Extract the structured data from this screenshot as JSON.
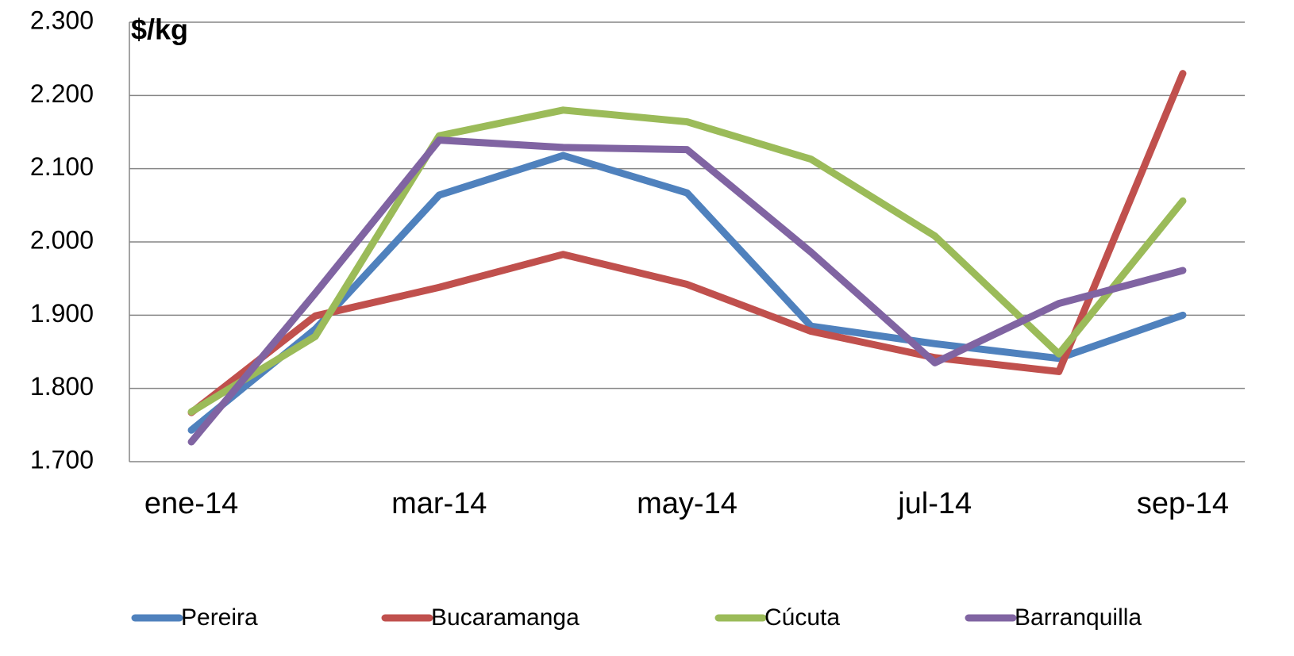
{
  "chart_data": {
    "type": "line",
    "title": "$/kg",
    "categories": [
      "ene-14",
      null,
      "mar-14",
      null,
      "may-14",
      null,
      "jul-14",
      null,
      "sep-14"
    ],
    "series": [
      {
        "name": "Pereira",
        "color": "#4f81bd",
        "values": [
          1743,
          1881,
          2064,
          2118,
          2067,
          1885,
          1861,
          1841,
          1900
        ]
      },
      {
        "name": "Bucaramanga",
        "color": "#c0504d",
        "values": [
          1767,
          1899,
          1938,
          1983,
          1942,
          1878,
          1842,
          1823,
          2230
        ]
      },
      {
        "name": "Cúcuta",
        "color": "#9bbb59",
        "values": [
          1768,
          1871,
          2145,
          2180,
          2164,
          2113,
          2008,
          1847,
          2056
        ]
      },
      {
        "name": "Barranquilla",
        "color": "#8064a2",
        "values": [
          1727,
          1930,
          2139,
          2129,
          2126,
          1986,
          1835,
          1916,
          1961
        ]
      }
    ],
    "ylim": [
      1700,
      2300
    ],
    "yticks": [
      {
        "value": 1700,
        "label": "1.700"
      },
      {
        "value": 1800,
        "label": "1.800"
      },
      {
        "value": 1900,
        "label": "1.900"
      },
      {
        "value": 2000,
        "label": "2.000"
      },
      {
        "value": 2100,
        "label": "2.100"
      },
      {
        "value": 2200,
        "label": "2.200"
      },
      {
        "value": 2300,
        "label": "2.300"
      }
    ],
    "grid": true,
    "legend": "bottom"
  }
}
